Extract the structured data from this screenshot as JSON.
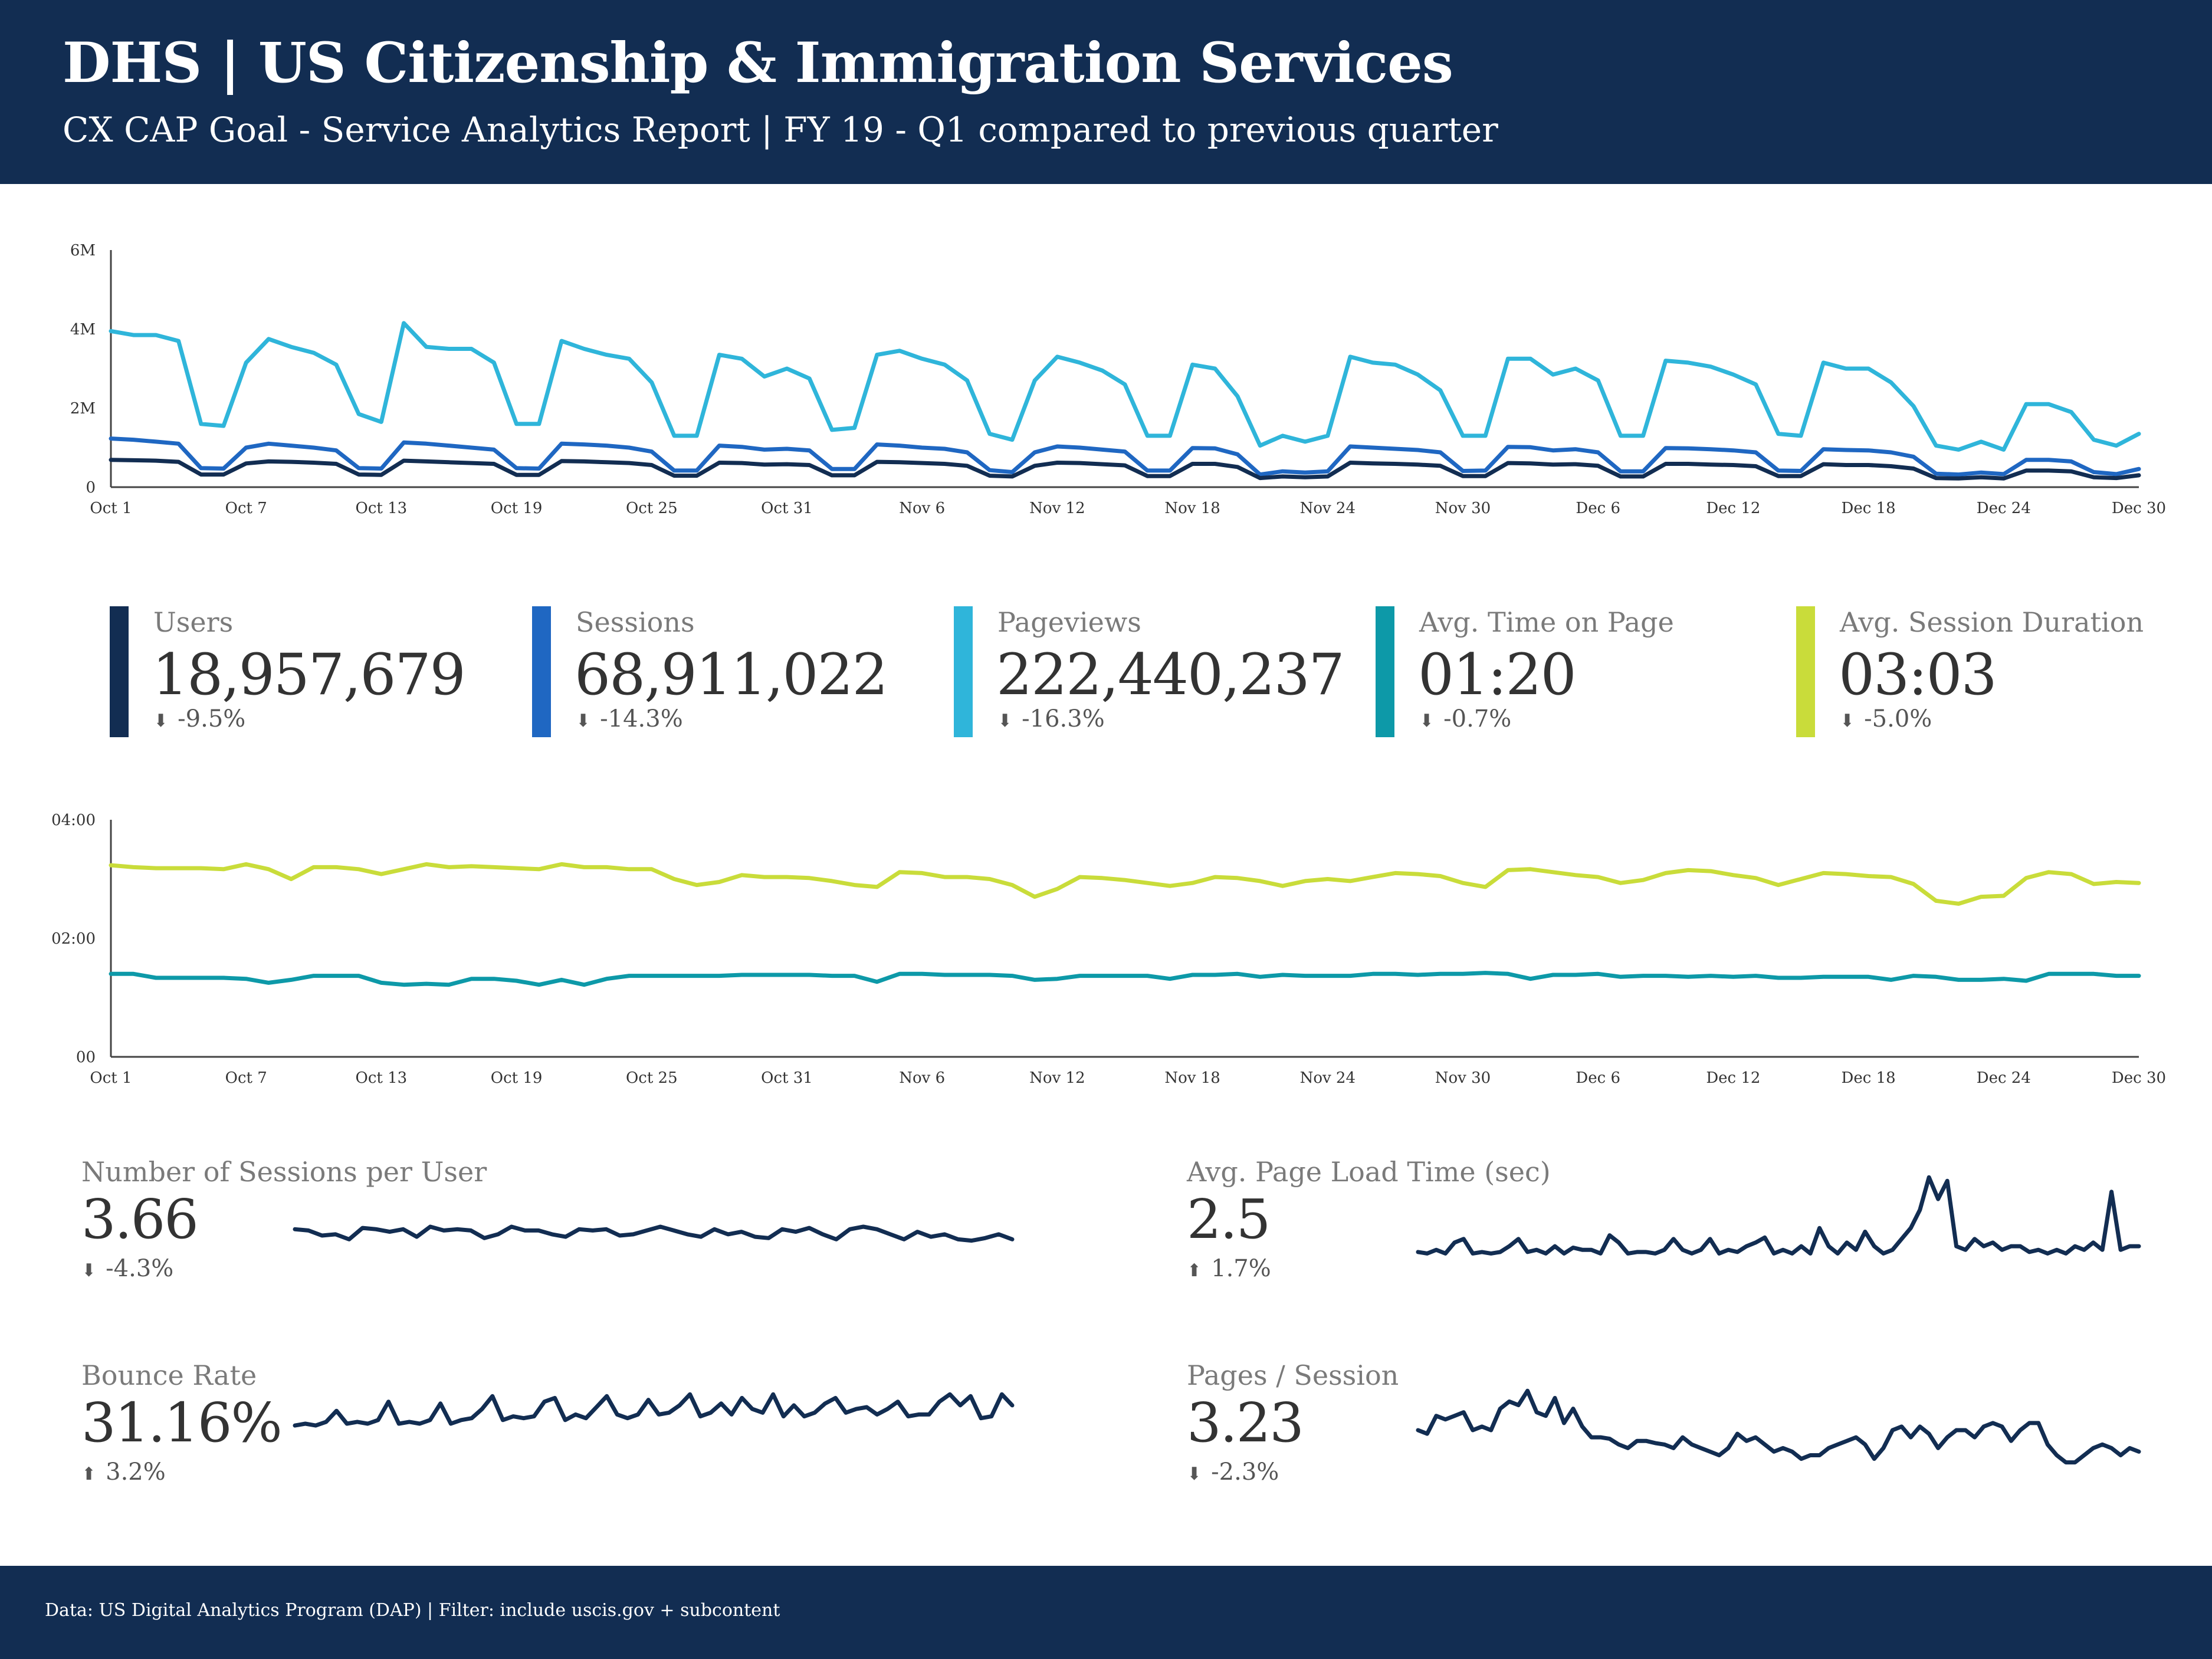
{
  "header": {
    "title": "DHS | US Citizenship & Immigration Services",
    "subtitle": "CX CAP Goal - Service Analytics Report | FY 19 - Q1 compared to previous quarter"
  },
  "footer": {
    "note": "Data: US Digital Analytics Program (DAP) | Filter: include uscis.gov + subcontent"
  },
  "colors": {
    "navy": "#122d52",
    "users": "#122d52",
    "sessions": "#1f67c2",
    "pageviews": "#2fb5da",
    "time_on_page": "#0d99a8",
    "session_duration": "#c9dc3a",
    "mini_line": "#122d52"
  },
  "kpis": [
    {
      "label": "Users",
      "value": "18,957,679",
      "direction": "down",
      "delta": "-9.5%",
      "color": "#122d52"
    },
    {
      "label": "Sessions",
      "value": "68,911,022",
      "direction": "down",
      "delta": "-14.3%",
      "color": "#1f67c2"
    },
    {
      "label": "Pageviews",
      "value": "222,440,237",
      "direction": "down",
      "delta": "-16.3%",
      "color": "#2fb5da"
    },
    {
      "label": "Avg. Time on Page",
      "value": "01:20",
      "direction": "down",
      "delta": "-0.7%",
      "color": "#0d99a8"
    },
    {
      "label": "Avg. Session Duration",
      "value": "03:03",
      "direction": "down",
      "delta": "-5.0%",
      "color": "#c9dc3a"
    }
  ],
  "minis": [
    {
      "label": "Number of Sessions per User",
      "value": "3.66",
      "direction": "down",
      "delta": "-4.3%"
    },
    {
      "label": "Avg. Page Load Time (sec)",
      "value": "2.5",
      "direction": "up",
      "delta": "1.7%"
    },
    {
      "label": "Bounce Rate",
      "value": "31.16%",
      "direction": "up",
      "delta": "3.2%"
    },
    {
      "label": "Pages / Session",
      "value": "3.23",
      "direction": "down",
      "delta": "-2.3%"
    }
  ],
  "chart_data": [
    {
      "type": "line",
      "x_start": "Oct 1",
      "x_end": "Dec 31",
      "xticks": [
        "Oct 1",
        "Oct 7",
        "Oct 13",
        "Oct 19",
        "Oct 25",
        "Oct 31",
        "Nov 6",
        "Nov 12",
        "Nov 18",
        "Nov 24",
        "Nov 30",
        "Dec 6",
        "Dec 12",
        "Dec 18",
        "Dec 24",
        "Dec 30"
      ],
      "yticks": [
        "0",
        "2M",
        "4M",
        "6M"
      ],
      "ylim": [
        0,
        6000000
      ],
      "series": [
        {
          "name": "Pageviews",
          "color": "#2fb5da",
          "values": [
            3950000,
            3850000,
            3850000,
            3700000,
            1600000,
            1550000,
            3150000,
            3750000,
            3550000,
            3400000,
            3100000,
            1850000,
            1650000,
            4150000,
            3550000,
            3500000,
            3500000,
            3150000,
            1600000,
            1600000,
            3700000,
            3500000,
            3350000,
            3250000,
            2650000,
            1300000,
            1300000,
            3350000,
            3250000,
            2800000,
            3000000,
            2750000,
            1450000,
            1500000,
            3350000,
            3450000,
            3250000,
            3100000,
            2700000,
            1350000,
            1200000,
            2700000,
            3300000,
            3150000,
            2950000,
            2600000,
            1300000,
            1300000,
            3100000,
            3000000,
            2300000,
            1050000,
            1300000,
            1150000,
            1300000,
            3300000,
            3150000,
            3100000,
            2850000,
            2450000,
            1300000,
            1300000,
            3250000,
            3250000,
            2850000,
            3000000,
            2700000,
            1300000,
            1300000,
            3200000,
            3150000,
            3050000,
            2850000,
            2600000,
            1350000,
            1300000,
            3150000,
            3000000,
            3000000,
            2650000,
            2050000,
            1050000,
            950000,
            1150000,
            950000,
            2100000,
            2100000,
            1900000,
            1200000,
            1050000,
            1350000
          ]
        },
        {
          "name": "Sessions",
          "color": "#1f67c2",
          "values": [
            1230000,
            1200000,
            1150000,
            1100000,
            480000,
            470000,
            1000000,
            1100000,
            1050000,
            1000000,
            930000,
            480000,
            470000,
            1130000,
            1100000,
            1050000,
            1000000,
            950000,
            480000,
            470000,
            1100000,
            1080000,
            1050000,
            1000000,
            900000,
            420000,
            420000,
            1050000,
            1020000,
            950000,
            970000,
            930000,
            460000,
            460000,
            1080000,
            1050000,
            1000000,
            970000,
            880000,
            430000,
            380000,
            880000,
            1030000,
            1000000,
            950000,
            900000,
            420000,
            420000,
            990000,
            980000,
            830000,
            320000,
            400000,
            370000,
            400000,
            1030000,
            1000000,
            970000,
            940000,
            880000,
            410000,
            420000,
            1020000,
            1010000,
            930000,
            960000,
            880000,
            400000,
            400000,
            990000,
            980000,
            960000,
            930000,
            880000,
            420000,
            410000,
            960000,
            940000,
            930000,
            880000,
            770000,
            340000,
            320000,
            370000,
            330000,
            690000,
            690000,
            650000,
            380000,
            330000,
            460000
          ]
        },
        {
          "name": "Users",
          "color": "#122d52",
          "values": [
            690000,
            680000,
            670000,
            640000,
            320000,
            320000,
            600000,
            650000,
            640000,
            620000,
            590000,
            320000,
            310000,
            670000,
            650000,
            630000,
            610000,
            590000,
            310000,
            310000,
            660000,
            650000,
            630000,
            610000,
            560000,
            290000,
            290000,
            620000,
            610000,
            570000,
            580000,
            560000,
            300000,
            300000,
            640000,
            630000,
            610000,
            590000,
            540000,
            290000,
            270000,
            540000,
            620000,
            610000,
            580000,
            550000,
            280000,
            280000,
            590000,
            590000,
            510000,
            230000,
            270000,
            250000,
            270000,
            620000,
            600000,
            590000,
            570000,
            540000,
            280000,
            280000,
            610000,
            600000,
            570000,
            580000,
            540000,
            270000,
            270000,
            590000,
            590000,
            570000,
            560000,
            530000,
            280000,
            280000,
            580000,
            560000,
            560000,
            530000,
            470000,
            230000,
            220000,
            250000,
            220000,
            420000,
            420000,
            400000,
            250000,
            230000,
            300000
          ]
        }
      ]
    },
    {
      "type": "line",
      "x_start": "Oct 1",
      "x_end": "Dec 31",
      "xticks": [
        "Oct 1",
        "Oct 7",
        "Oct 13",
        "Oct 19",
        "Oct 25",
        "Oct 31",
        "Nov 6",
        "Nov 12",
        "Nov 18",
        "Nov 24",
        "Nov 30",
        "Dec 6",
        "Dec 12",
        "Dec 18",
        "Dec 24",
        "Dec 30"
      ],
      "yticks": [
        "00",
        "02:00",
        "04:00"
      ],
      "ylim_seconds": [
        0,
        240
      ],
      "series": [
        {
          "name": "Avg. Session Duration",
          "color": "#c9dc3a",
          "values": [
            194,
            192,
            191,
            191,
            191,
            190,
            195,
            190,
            180,
            192,
            192,
            190,
            185,
            190,
            195,
            192,
            193,
            192,
            191,
            190,
            195,
            192,
            192,
            190,
            190,
            180,
            174,
            177,
            184,
            182,
            182,
            181,
            178,
            174,
            172,
            187,
            186,
            182,
            182,
            180,
            174,
            162,
            170,
            182,
            181,
            179,
            176,
            173,
            176,
            182,
            181,
            178,
            173,
            178,
            180,
            178,
            182,
            186,
            185,
            183,
            176,
            172,
            189,
            190,
            187,
            184,
            182,
            176,
            179,
            186,
            189,
            188,
            184,
            181,
            174,
            180,
            186,
            185,
            183,
            182,
            175,
            158,
            155,
            162,
            163,
            181,
            187,
            185,
            175,
            177,
            176
          ]
        },
        {
          "name": "Avg. Time on Page",
          "color": "#0d99a8",
          "values": [
            84,
            84,
            80,
            80,
            80,
            80,
            79,
            75,
            78,
            82,
            82,
            82,
            75,
            73,
            74,
            73,
            79,
            79,
            77,
            73,
            78,
            73,
            79,
            82,
            82,
            82,
            82,
            82,
            83,
            83,
            83,
            83,
            82,
            82,
            76,
            84,
            84,
            83,
            83,
            83,
            82,
            78,
            79,
            82,
            82,
            82,
            82,
            79,
            83,
            83,
            84,
            81,
            83,
            82,
            82,
            82,
            84,
            84,
            83,
            84,
            84,
            85,
            84,
            79,
            83,
            83,
            84,
            81,
            82,
            82,
            81,
            82,
            81,
            82,
            80,
            80,
            81,
            81,
            81,
            78,
            82,
            81,
            78,
            78,
            79,
            77,
            84,
            84,
            84,
            82,
            82
          ]
        }
      ]
    },
    {
      "type": "line",
      "name": "Number of Sessions per User",
      "values": [
        3.7,
        3.69,
        3.65,
        3.66,
        3.62,
        3.71,
        3.7,
        3.68,
        3.7,
        3.64,
        3.72,
        3.69,
        3.7,
        3.69,
        3.63,
        3.66,
        3.72,
        3.69,
        3.69,
        3.66,
        3.64,
        3.7,
        3.69,
        3.7,
        3.65,
        3.66,
        3.69,
        3.72,
        3.69,
        3.66,
        3.64,
        3.7,
        3.66,
        3.68,
        3.64,
        3.63,
        3.7,
        3.68,
        3.71,
        3.66,
        3.62,
        3.7,
        3.72,
        3.7,
        3.66,
        3.62,
        3.68,
        3.64,
        3.66,
        3.62,
        3.61,
        3.63,
        3.66,
        3.62
      ]
    },
    {
      "type": "line",
      "name": "Avg. Page Load Time (sec)",
      "values": [
        2.42,
        2.4,
        2.45,
        2.4,
        2.55,
        2.6,
        2.4,
        2.42,
        2.4,
        2.42,
        2.5,
        2.6,
        2.42,
        2.45,
        2.4,
        2.5,
        2.4,
        2.48,
        2.45,
        2.45,
        2.4,
        2.65,
        2.55,
        2.4,
        2.42,
        2.42,
        2.4,
        2.45,
        2.6,
        2.45,
        2.4,
        2.45,
        2.6,
        2.4,
        2.45,
        2.42,
        2.5,
        2.55,
        2.62,
        2.4,
        2.45,
        2.4,
        2.5,
        2.4,
        2.75,
        2.5,
        2.4,
        2.55,
        2.45,
        2.7,
        2.5,
        2.4,
        2.45,
        2.6,
        2.75,
        3.0,
        3.45,
        3.15,
        3.4,
        2.5,
        2.45,
        2.6,
        2.5,
        2.55,
        2.45,
        2.5,
        2.5,
        2.42,
        2.45,
        2.4,
        2.45,
        2.4,
        2.5,
        2.45,
        2.55,
        2.45,
        3.25,
        2.45,
        2.5,
        2.5
      ]
    },
    {
      "type": "line",
      "name": "Bounce Rate",
      "values": [
        30.2,
        30.3,
        30.2,
        30.4,
        31.0,
        30.3,
        30.4,
        30.3,
        30.5,
        31.5,
        30.3,
        30.4,
        30.3,
        30.5,
        31.4,
        30.3,
        30.5,
        30.6,
        31.1,
        31.8,
        30.5,
        30.7,
        30.6,
        30.7,
        31.5,
        31.7,
        30.5,
        30.8,
        30.6,
        31.2,
        31.8,
        30.8,
        30.6,
        30.8,
        31.6,
        30.8,
        30.9,
        31.3,
        31.9,
        30.7,
        30.9,
        31.4,
        30.8,
        31.7,
        31.1,
        30.9,
        31.9,
        30.7,
        31.3,
        30.7,
        30.9,
        31.4,
        31.7,
        30.9,
        31.1,
        31.2,
        30.8,
        31.1,
        31.5,
        30.7,
        30.8,
        30.8,
        31.5,
        31.9,
        31.3,
        31.8,
        30.6,
        30.7,
        31.9,
        31.3
      ]
    },
    {
      "type": "line",
      "name": "Pages / Session",
      "values": [
        3.3,
        3.25,
        3.5,
        3.45,
        3.5,
        3.55,
        3.3,
        3.35,
        3.3,
        3.6,
        3.7,
        3.65,
        3.85,
        3.55,
        3.5,
        3.75,
        3.4,
        3.6,
        3.35,
        3.2,
        3.2,
        3.18,
        3.1,
        3.05,
        3.15,
        3.15,
        3.12,
        3.1,
        3.05,
        3.2,
        3.1,
        3.05,
        3.0,
        2.95,
        3.05,
        3.25,
        3.15,
        3.2,
        3.1,
        3.0,
        3.05,
        3.0,
        2.9,
        2.95,
        2.95,
        3.05,
        3.1,
        3.15,
        3.2,
        3.1,
        2.9,
        3.05,
        3.3,
        3.35,
        3.2,
        3.35,
        3.25,
        3.05,
        3.2,
        3.3,
        3.3,
        3.2,
        3.35,
        3.4,
        3.35,
        3.15,
        3.3,
        3.4,
        3.4,
        3.1,
        2.95,
        2.85,
        2.85,
        2.95,
        3.05,
        3.1,
        3.05,
        2.95,
        3.05,
        3.0
      ]
    }
  ]
}
